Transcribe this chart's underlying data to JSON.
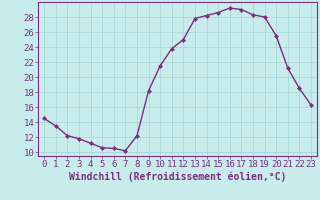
{
  "x": [
    0,
    1,
    2,
    3,
    4,
    5,
    6,
    7,
    8,
    9,
    10,
    11,
    12,
    13,
    14,
    15,
    16,
    17,
    18,
    19,
    20,
    21,
    22,
    23
  ],
  "y": [
    14.5,
    13.5,
    12.2,
    11.8,
    11.2,
    10.6,
    10.5,
    10.2,
    12.2,
    18.2,
    21.5,
    23.8,
    25.0,
    27.8,
    28.2,
    28.6,
    29.2,
    29.0,
    28.3,
    28.0,
    25.5,
    21.2,
    18.5,
    16.3
  ],
  "line_color": "#7b2f7b",
  "marker": "D",
  "marker_size": 2.0,
  "bg_color": "#c8ecec",
  "grid_color": "#a8d8d8",
  "xlabel": "Windchill (Refroidissement éolien,°C)",
  "xlabel_color": "#7b2f7b",
  "tick_color": "#7b2f7b",
  "border_color": "#7b2f7b",
  "ylim": [
    9.5,
    30.0
  ],
  "xlim": [
    -0.5,
    23.5
  ],
  "yticks": [
    10,
    12,
    14,
    16,
    18,
    20,
    22,
    24,
    26,
    28
  ],
  "xticks": [
    0,
    1,
    2,
    3,
    4,
    5,
    6,
    7,
    8,
    9,
    10,
    11,
    12,
    13,
    14,
    15,
    16,
    17,
    18,
    19,
    20,
    21,
    22,
    23
  ],
  "tick_fontsize": 6.5,
  "xlabel_fontsize": 7.0,
  "linewidth": 1.0
}
